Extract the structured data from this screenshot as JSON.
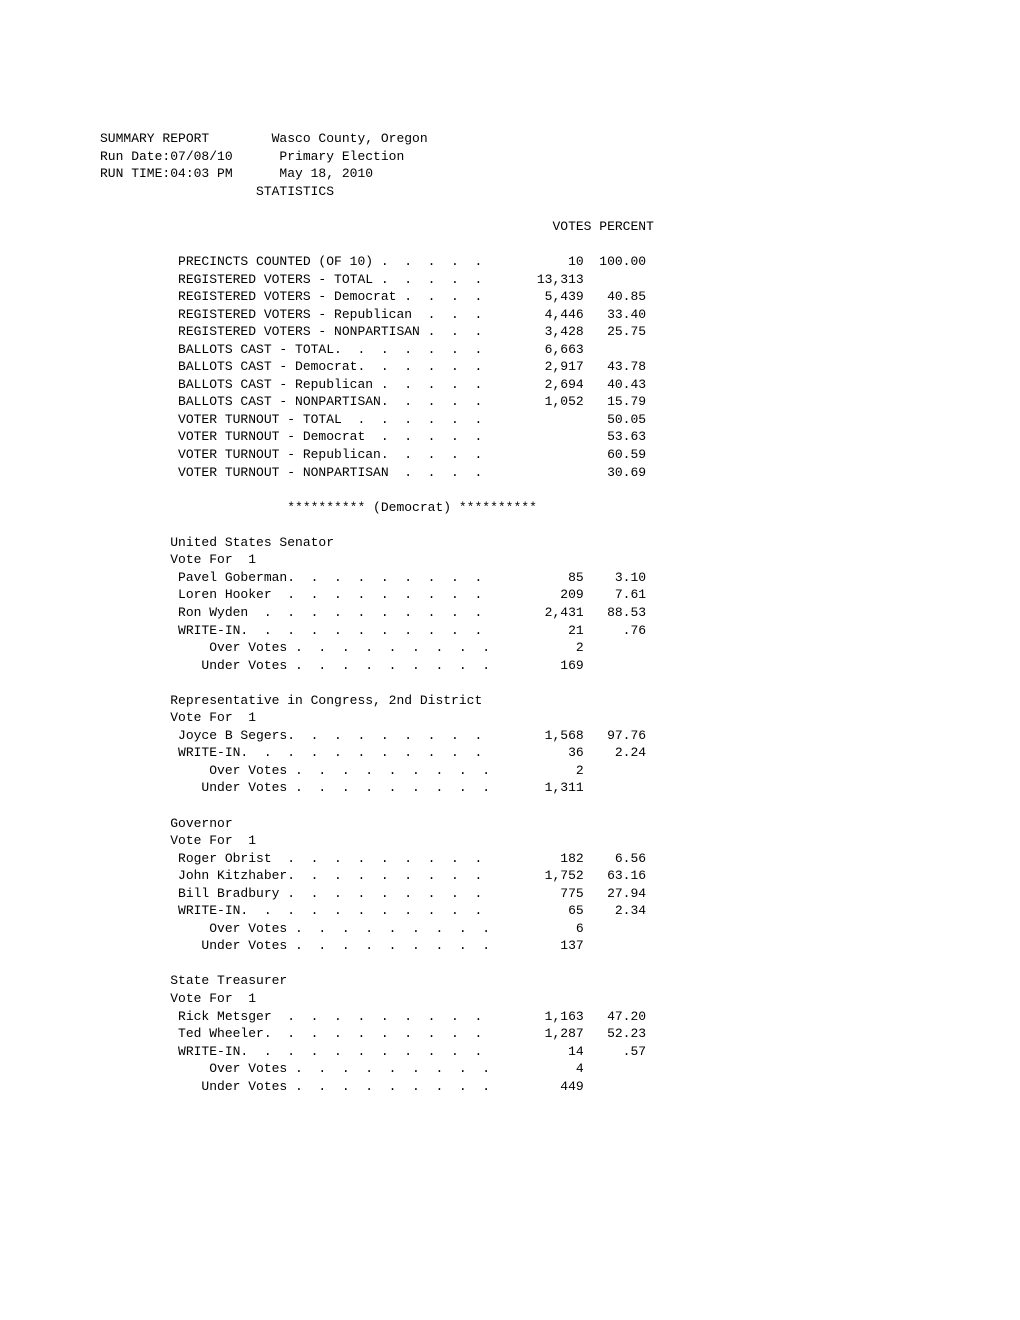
{
  "header": {
    "line1_left": "SUMMARY REPORT",
    "line1_right": "Wasco County, Oregon",
    "line2_left": "Run Date:07/08/10",
    "line2_right": "Primary Election",
    "line3_left": "RUN TIME:04:03 PM",
    "line3_right": "May 18, 2010",
    "line4": "STATISTICS"
  },
  "col_headers": {
    "votes": "VOTES",
    "percent": "PERCENT"
  },
  "stats": [
    {
      "label": "PRECINCTS COUNTED (OF 10) .  .  .  .  .",
      "votes": "10",
      "percent": "100.00"
    },
    {
      "label": "REGISTERED VOTERS - TOTAL .  .  .  .  .",
      "votes": "13,313",
      "percent": ""
    },
    {
      "label": "REGISTERED VOTERS - Democrat .  .  .  .",
      "votes": "5,439",
      "percent": "40.85"
    },
    {
      "label": "REGISTERED VOTERS - Republican  .  .  .",
      "votes": "4,446",
      "percent": "33.40"
    },
    {
      "label": "REGISTERED VOTERS - NONPARTISAN .  .  .",
      "votes": "3,428",
      "percent": "25.75"
    },
    {
      "label": "BALLOTS CAST - TOTAL.  .  .  .  .  .  .",
      "votes": "6,663",
      "percent": ""
    },
    {
      "label": "BALLOTS CAST - Democrat.  .  .  .  .  .",
      "votes": "2,917",
      "percent": "43.78"
    },
    {
      "label": "BALLOTS CAST - Republican .  .  .  .  .",
      "votes": "2,694",
      "percent": "40.43"
    },
    {
      "label": "BALLOTS CAST - NONPARTISAN.  .  .  .  .",
      "votes": "1,052",
      "percent": "15.79"
    },
    {
      "label": "VOTER TURNOUT - TOTAL  .  .  .  .  .  .",
      "votes": "",
      "percent": "50.05"
    },
    {
      "label": "VOTER TURNOUT - Democrat  .  .  .  .  .",
      "votes": "",
      "percent": "53.63"
    },
    {
      "label": "VOTER TURNOUT - Republican.  .  .  .  .",
      "votes": "",
      "percent": "60.59"
    },
    {
      "label": "VOTER TURNOUT - NONPARTISAN  .  .  .  .",
      "votes": "",
      "percent": "30.69"
    }
  ],
  "party_section": "********** (Democrat) **********",
  "races": [
    {
      "title": "United States Senator",
      "vote_for": "Vote For  1",
      "rows": [
        {
          "label": "Pavel Goberman.  .  .  .  .  .  .  .  .",
          "votes": "85",
          "percent": "3.10"
        },
        {
          "label": "Loren Hooker  .  .  .  .  .  .  .  .  .",
          "votes": "209",
          "percent": "7.61"
        },
        {
          "label": "Ron Wyden  .  .  .  .  .  .  .  .  .  .",
          "votes": "2,431",
          "percent": "88.53"
        },
        {
          "label": "WRITE-IN.  .  .  .  .  .  .  .  .  .  .",
          "votes": "21",
          "percent": ".76"
        },
        {
          "label": "    Over Votes .  .  .  .  .  .  .  .  .",
          "votes": "2",
          "percent": ""
        },
        {
          "label": "   Under Votes .  .  .  .  .  .  .  .  .",
          "votes": "169",
          "percent": ""
        }
      ]
    },
    {
      "title": "Representative in Congress, 2nd District",
      "vote_for": "Vote For  1",
      "rows": [
        {
          "label": "Joyce B Segers.  .  .  .  .  .  .  .  .",
          "votes": "1,568",
          "percent": "97.76"
        },
        {
          "label": "WRITE-IN.  .  .  .  .  .  .  .  .  .  .",
          "votes": "36",
          "percent": "2.24"
        },
        {
          "label": "    Over Votes .  .  .  .  .  .  .  .  .",
          "votes": "2",
          "percent": ""
        },
        {
          "label": "   Under Votes .  .  .  .  .  .  .  .  .",
          "votes": "1,311",
          "percent": ""
        }
      ]
    },
    {
      "title": "Governor",
      "vote_for": "Vote For  1",
      "rows": [
        {
          "label": "Roger Obrist  .  .  .  .  .  .  .  .  .",
          "votes": "182",
          "percent": "6.56"
        },
        {
          "label": "John Kitzhaber.  .  .  .  .  .  .  .  .",
          "votes": "1,752",
          "percent": "63.16"
        },
        {
          "label": "Bill Bradbury .  .  .  .  .  .  .  .  .",
          "votes": "775",
          "percent": "27.94"
        },
        {
          "label": "WRITE-IN.  .  .  .  .  .  .  .  .  .  .",
          "votes": "65",
          "percent": "2.34"
        },
        {
          "label": "    Over Votes .  .  .  .  .  .  .  .  .",
          "votes": "6",
          "percent": ""
        },
        {
          "label": "   Under Votes .  .  .  .  .  .  .  .  .",
          "votes": "137",
          "percent": ""
        }
      ]
    },
    {
      "title": "State Treasurer",
      "vote_for": "Vote For  1",
      "rows": [
        {
          "label": "Rick Metsger  .  .  .  .  .  .  .  .  .",
          "votes": "1,163",
          "percent": "47.20"
        },
        {
          "label": "Ted Wheeler.  .  .  .  .  .  .  .  .  .",
          "votes": "1,287",
          "percent": "52.23"
        },
        {
          "label": "WRITE-IN.  .  .  .  .  .  .  .  .  .  .",
          "votes": "14",
          "percent": ".57"
        },
        {
          "label": "    Over Votes .  .  .  .  .  .  .  .  .",
          "votes": "4",
          "percent": ""
        },
        {
          "label": "   Under Votes .  .  .  .  .  .  .  .  .",
          "votes": "449",
          "percent": ""
        }
      ]
    }
  ]
}
